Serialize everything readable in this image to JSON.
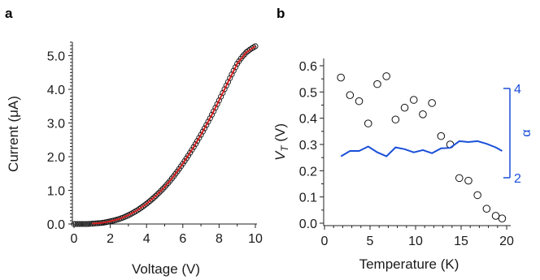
{
  "chart_data": [
    {
      "panel": "a",
      "type": "scatter",
      "xlabel": "Voltage (V)",
      "ylabel": "Current (μA)",
      "xlim": [
        0,
        10
      ],
      "ylim": [
        0,
        5.4
      ],
      "xticks": [
        "0",
        "2",
        "4",
        "6",
        "8",
        "10"
      ],
      "yticks": [
        "0.0",
        "1.0",
        "2.0",
        "3.0",
        "4.0",
        "5.0"
      ],
      "grid": false,
      "series": [
        {
          "marker": "open-circle",
          "color": "#000000",
          "x": [
            0.0,
            0.25,
            0.5,
            0.75,
            1.0,
            1.25,
            1.5,
            1.75,
            2.0,
            2.25,
            2.5,
            2.75,
            3.0,
            3.25,
            3.5,
            3.75,
            4.0,
            4.25,
            4.5,
            4.75,
            5.0,
            5.25,
            5.5,
            5.75,
            6.0,
            6.25,
            6.5,
            6.75,
            7.0,
            7.25,
            7.5,
            7.75,
            8.0,
            8.25,
            8.5,
            8.75,
            9.0,
            9.25,
            9.5,
            9.75,
            10.0
          ],
          "y": [
            0.0,
            0.0,
            0.0,
            0.0,
            0.01,
            0.02,
            0.03,
            0.05,
            0.08,
            0.11,
            0.15,
            0.2,
            0.26,
            0.33,
            0.41,
            0.5,
            0.6,
            0.71,
            0.83,
            0.96,
            1.1,
            1.25,
            1.42,
            1.6,
            1.79,
            1.99,
            2.2,
            2.42,
            2.65,
            2.89,
            3.14,
            3.4,
            3.67,
            3.95,
            4.22,
            4.5,
            4.76,
            4.95,
            5.1,
            5.2,
            5.28
          ]
        },
        {
          "marker": "line",
          "color": "#d62020",
          "x": [
            1.0,
            1.5,
            2.0,
            2.5,
            3.0,
            3.5,
            4.0,
            4.5,
            5.0,
            5.5,
            6.0,
            6.5,
            7.0,
            7.5,
            8.0,
            8.5,
            9.0,
            9.5,
            10.0
          ],
          "y": [
            0.01,
            0.03,
            0.08,
            0.15,
            0.26,
            0.41,
            0.6,
            0.83,
            1.1,
            1.42,
            1.79,
            2.2,
            2.65,
            3.14,
            3.67,
            4.22,
            4.76,
            5.1,
            5.28
          ]
        }
      ]
    },
    {
      "panel": "b",
      "type": "scatter",
      "xlabel": "Temperature (K)",
      "ylabel": "V_T (V)",
      "xlim": [
        0,
        20
      ],
      "ylim": [
        0,
        0.6
      ],
      "xticks": [
        "0",
        "5",
        "10",
        "15",
        "20"
      ],
      "yticks": [
        "0.0",
        "0.1",
        "0.2",
        "0.3",
        "0.4",
        "0.5",
        "0.6"
      ],
      "y2label": "α",
      "y2lim": [
        2,
        4
      ],
      "y2ticks": [
        "2",
        "4"
      ],
      "grid": false,
      "series": [
        {
          "marker": "open-circle",
          "color": "#000000",
          "axis": "left",
          "x": [
            1.8,
            2.8,
            3.8,
            4.8,
            5.8,
            6.8,
            7.8,
            8.8,
            9.8,
            10.8,
            11.8,
            12.8,
            13.8,
            14.8,
            15.8,
            16.8,
            17.8,
            18.8,
            19.5
          ],
          "y": [
            0.555,
            0.488,
            0.465,
            0.38,
            0.53,
            0.56,
            0.395,
            0.44,
            0.47,
            0.415,
            0.458,
            0.332,
            0.3,
            0.172,
            0.162,
            0.107,
            0.055,
            0.028,
            0.018
          ]
        },
        {
          "marker": "line",
          "color": "#1a4fd8",
          "axis": "right",
          "x": [
            1.8,
            2.8,
            3.8,
            4.8,
            5.8,
            6.8,
            7.8,
            8.8,
            9.8,
            10.8,
            11.8,
            12.8,
            13.8,
            14.8,
            15.8,
            16.8,
            17.8,
            18.8,
            19.5
          ],
          "y": [
            2.48,
            2.6,
            2.6,
            2.7,
            2.57,
            2.48,
            2.68,
            2.64,
            2.57,
            2.62,
            2.55,
            2.66,
            2.67,
            2.82,
            2.8,
            2.82,
            2.76,
            2.68,
            2.6
          ]
        }
      ]
    }
  ]
}
